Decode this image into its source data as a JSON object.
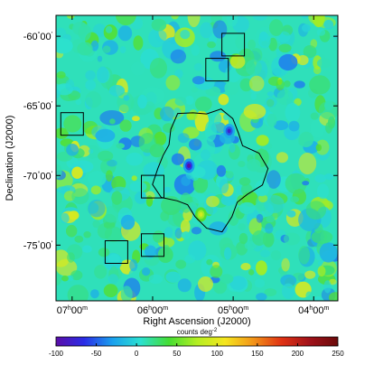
{
  "chart_data": {
    "type": "heatmap",
    "title": "",
    "xlabel": "Right Ascension (J2000)",
    "ylabel": "Declination (J2000)",
    "x_ticks": [
      {
        "value": 7.0,
        "h": "07",
        "m": "00"
      },
      {
        "value": 6.0,
        "h": "06",
        "m": "00"
      },
      {
        "value": 5.0,
        "h": "05",
        "m": "00"
      },
      {
        "value": 4.0,
        "h": "04",
        "m": "00"
      }
    ],
    "y_ticks": [
      {
        "value": -60,
        "deg": "-60",
        "min": "00"
      },
      {
        "value": -65,
        "deg": "-65",
        "min": "00"
      },
      {
        "value": -70,
        "deg": "-70",
        "min": "00"
      },
      {
        "value": -75,
        "deg": "-75",
        "min": "00"
      }
    ],
    "x_range_hours": [
      7.2,
      3.7
    ],
    "y_range_deg": [
      -58.5,
      -79.0
    ],
    "colorbar": {
      "label": "counts deg",
      "label_exponent": "-2",
      "range": [
        -100,
        250
      ],
      "ticks": [
        "-100",
        "-50",
        "0",
        "50",
        "100",
        "150",
        "200",
        "250"
      ],
      "colors": [
        "#5a0ea8",
        "#2a2ce6",
        "#1aa0ee",
        "#2ce0d0",
        "#44dd33",
        "#b4ee22",
        "#f5e61e",
        "#f29418",
        "#e03214",
        "#a0121a",
        "#6a0a0a"
      ]
    },
    "background_level": 10,
    "features": [
      {
        "name": "lmc-contour",
        "description": "black contour outlining the Large Magellanic Cloud",
        "center_ra_h": 5.33,
        "center_dec": -69.5
      },
      {
        "name": "hotspot",
        "ra_h": 5.05,
        "dec": -66.8,
        "value": -80
      },
      {
        "name": "hotspot",
        "ra_h": 5.55,
        "dec": -69.3,
        "value": -100
      },
      {
        "name": "hotspot",
        "ra_h": 5.4,
        "dec": -72.8,
        "value": 90
      }
    ],
    "boxes": [
      {
        "ra_h": 5.0,
        "dec": -60.6
      },
      {
        "ra_h": 5.2,
        "dec": -62.4
      },
      {
        "ra_h": 7.0,
        "dec": -66.3
      },
      {
        "ra_h": 6.0,
        "dec": -70.8
      },
      {
        "ra_h": 6.45,
        "dec": -75.5
      },
      {
        "ra_h": 6.0,
        "dec": -75.0
      }
    ]
  }
}
